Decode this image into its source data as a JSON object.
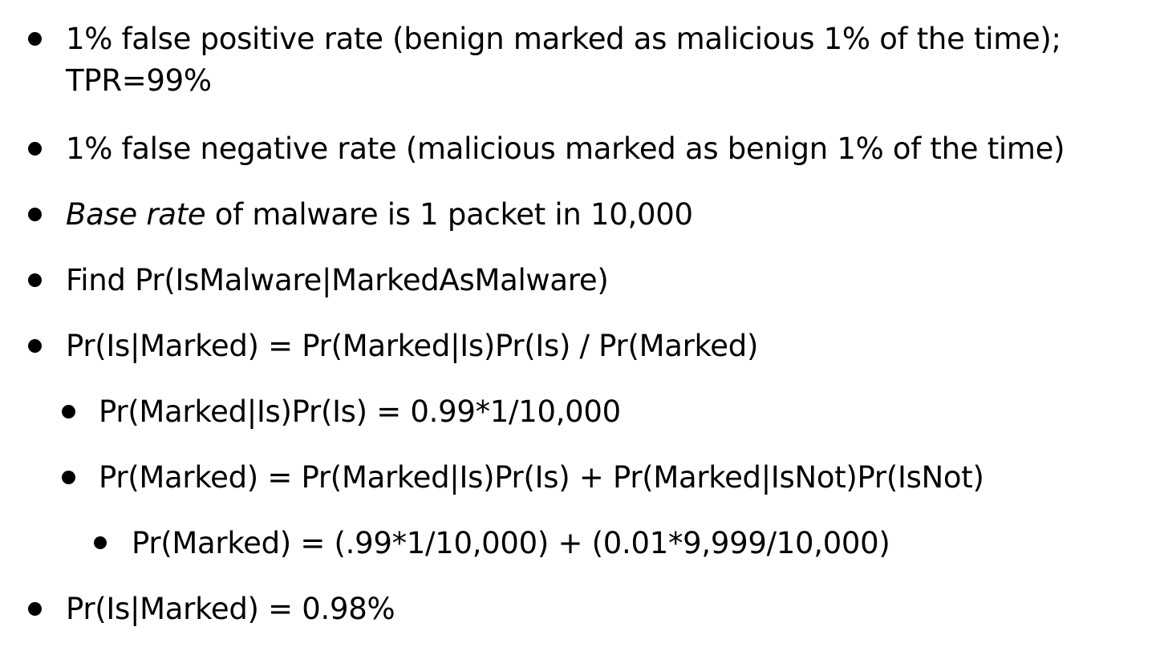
{
  "bullets": [
    {
      "line1": "1% false positive rate  (benign marked as malicious 1% of the time);",
      "line2": "TPR=99%"
    },
    {
      "text": "1% false negative rate  (malicious marked as benign 1% of the time)"
    },
    {
      "em": "Base rate",
      "rest": " of malware is 1 packet in 10,000"
    },
    {
      "text": "Find Pr(IsMalware|MarkedAsMalware)"
    },
    {
      "text": "Pr(Is|Marked) = Pr(Marked|Is)Pr(Is) / Pr(Marked)"
    },
    {
      "text": "Pr(Marked|Is)Pr(Is) = 0.99*1/10,000"
    },
    {
      "text": "Pr(Marked) = Pr(Marked|Is)Pr(Is) + Pr(Marked|IsNot)Pr(IsNot)"
    },
    {
      "text": "Pr(Marked) = (.99*1/10,000) + (0.01*9,999/10,000)"
    },
    {
      "text": "Pr(Is|Marked) = 0.98%"
    }
  ]
}
